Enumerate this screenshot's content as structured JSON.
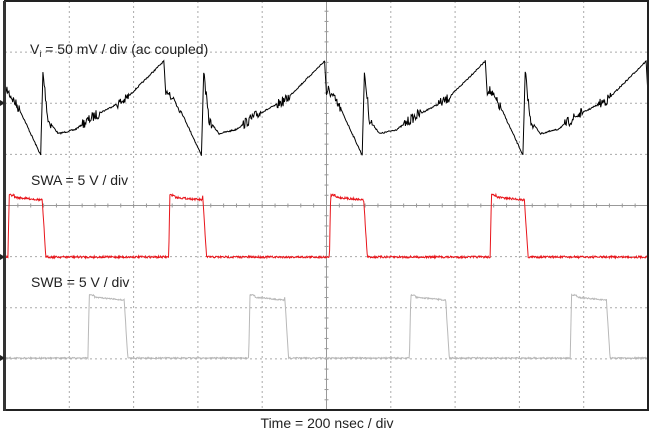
{
  "chart_data": {
    "type": "line",
    "title": "",
    "xlabel": "Time = 200 nsec / div",
    "x_unit": "ns",
    "xlim": [
      0,
      2000
    ],
    "grid": true,
    "period_ns": 500,
    "start_offset_ns": 6,
    "series": [
      {
        "name": "Vi",
        "label_main": "V",
        "label_sub": "i",
        "label_rest": " = 50 mV / div (ac coupled)",
        "unit": "mV",
        "scale_per_div": 50,
        "color": "#000000",
        "period_points": [
          [
            0,
            13
          ],
          [
            40,
            -7
          ],
          [
            105,
            -51
          ],
          [
            112,
            30
          ],
          [
            128,
            -17
          ],
          [
            160,
            -30
          ],
          [
            212,
            -26
          ],
          [
            275,
            -12
          ],
          [
            367,
            3
          ],
          [
            488,
            41
          ],
          [
            494,
            8
          ]
        ]
      },
      {
        "name": "SWA",
        "label": "SWA = 5 V / div",
        "unit": "V",
        "scale_per_div": 5,
        "color": "#e8151b",
        "high_V": 5.9,
        "low_V": 0,
        "rise_ns": 3,
        "fall_ns": 109
      },
      {
        "name": "SWB",
        "label": "SWB = 5 V / div",
        "unit": "V",
        "scale_per_div": 5,
        "color": "#b8b8b8",
        "high_V": 6,
        "low_V": 0,
        "rise_ns": 252,
        "fall_ns": 364
      }
    ]
  }
}
